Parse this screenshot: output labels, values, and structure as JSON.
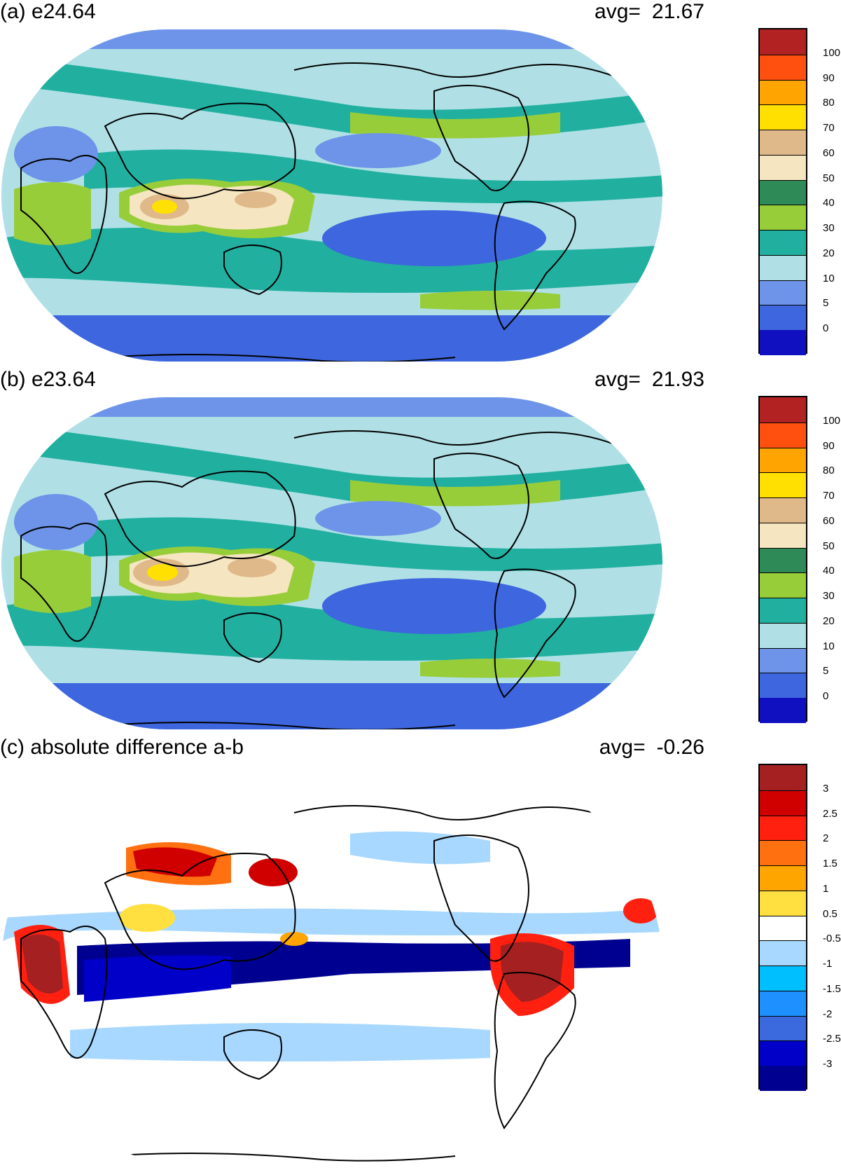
{
  "panels": [
    {
      "id": "a",
      "title": "(a) e24.64",
      "avg_label": "avg=",
      "avg_value": "21.67",
      "colorbar": {
        "colors": [
          "#1010c0",
          "#3e66de",
          "#6d94e8",
          "#b0e0e6",
          "#21b0a0",
          "#98cd3a",
          "#2e8b57",
          "#f5e5c0",
          "#dfb98a",
          "#ffe000",
          "#ffa400",
          "#ff5010",
          "#b22222"
        ],
        "labels": [
          "0",
          "5",
          "10",
          "20",
          "30",
          "40",
          "50",
          "60",
          "70",
          "80",
          "90",
          "100"
        ]
      }
    },
    {
      "id": "b",
      "title": "(b) e23.64",
      "avg_label": "avg=",
      "avg_value": "21.93",
      "colorbar": {
        "colors": [
          "#1010c0",
          "#3e66de",
          "#6d94e8",
          "#b0e0e6",
          "#21b0a0",
          "#98cd3a",
          "#2e8b57",
          "#f5e5c0",
          "#dfb98a",
          "#ffe000",
          "#ffa400",
          "#ff5010",
          "#b22222"
        ],
        "labels": [
          "0",
          "5",
          "10",
          "20",
          "30",
          "40",
          "50",
          "60",
          "70",
          "80",
          "90",
          "100"
        ]
      }
    },
    {
      "id": "c",
      "title": "(c) absolute difference a-b",
      "avg_label": "avg=",
      "avg_value": "-0.26",
      "colorbar": {
        "colors": [
          "#000090",
          "#0000c8",
          "#3a6ade",
          "#1e90ff",
          "#00bfff",
          "#a8d8ff",
          "#ffffff",
          "#ffe040",
          "#ffa500",
          "#ff7010",
          "#ff2010",
          "#d00000",
          "#a52020"
        ],
        "labels": [
          "-3",
          "-2.5",
          "-2",
          "-1.5",
          "-1",
          "-0.5",
          "0.5",
          "1",
          "1.5",
          "2",
          "2.5",
          "3"
        ]
      }
    }
  ]
}
